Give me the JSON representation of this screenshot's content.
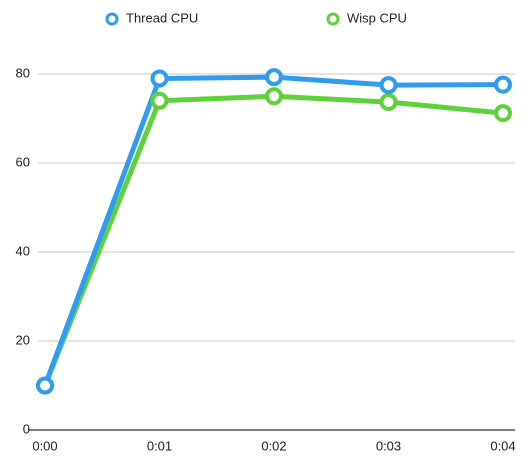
{
  "chart_data": {
    "type": "line",
    "categories": [
      "0:00",
      "0:01",
      "0:02",
      "0:03",
      "0:04"
    ],
    "series": [
      {
        "name": "Thread CPU",
        "color": "#2f9cf0",
        "values": [
          10,
          79,
          79.3,
          77.5,
          77.6
        ]
      },
      {
        "name": "Wisp CPU",
        "color": "#5fd13b",
        "values": [
          10,
          74,
          75,
          73.7,
          71.2
        ]
      }
    ],
    "ylim": [
      0,
      80
    ],
    "yticks": [
      0,
      20,
      40,
      60,
      80
    ],
    "grid": true,
    "legend": "top"
  }
}
